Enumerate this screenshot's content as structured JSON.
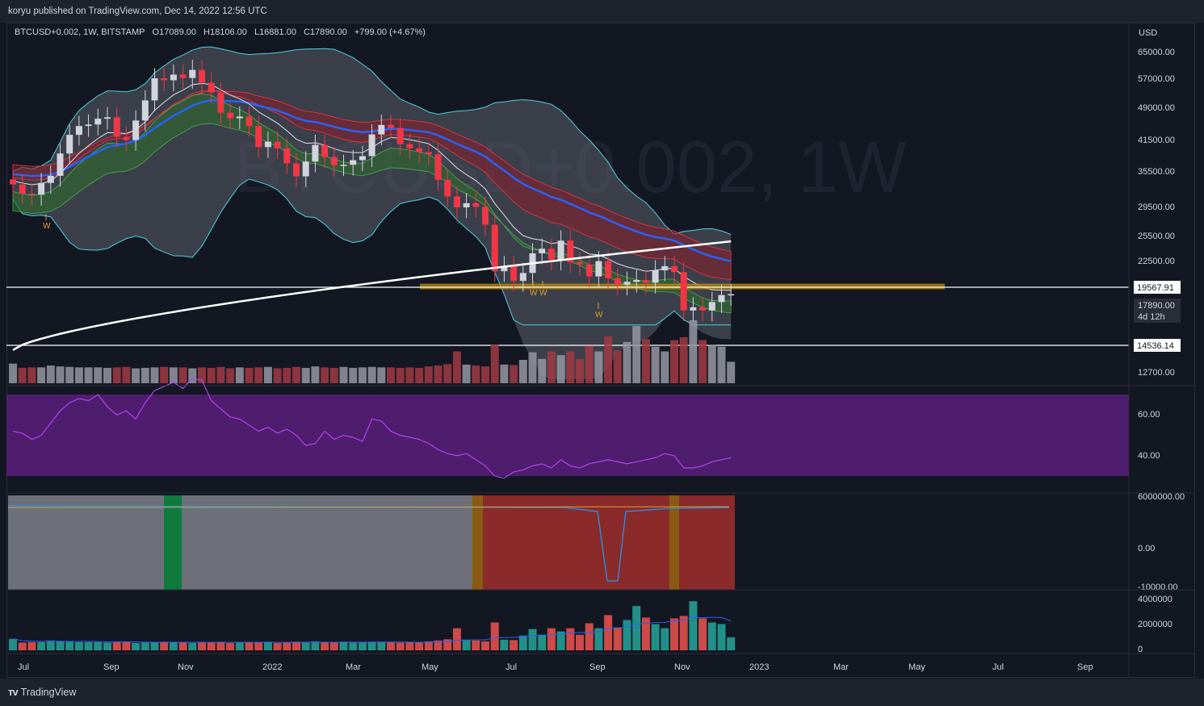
{
  "header": {
    "attribution": "koryu published on TradingView.com, Dec 14, 2022 12:56 UTC"
  },
  "legend": {
    "symbol": "BTCUSD+0.002, 1W, BITSTAMP",
    "open": "O17089.00",
    "high": "H18106.00",
    "low": "L16881.00",
    "close": "C17890.00",
    "change": "+799.00 (+4.67%)"
  },
  "watermark": "BTCUSD+0.002, 1W",
  "footer": {
    "brand": "TradingView"
  },
  "colors": {
    "up": "#d1d4dc",
    "down": "#f23645",
    "accent_orange": "#f7a21b",
    "ma200": "#ffffff",
    "rsi_band": "#5b1e7a",
    "rsi_line": "#b142f5"
  },
  "chart_data": [
    {
      "type": "candlestick",
      "title": "BTCUSD+0.002, 1W, BITSTAMP",
      "ylabel": "USD",
      "yscale": "log",
      "y_ticks": [
        "65000.00",
        "57000.00",
        "49000.00",
        "41500.00",
        "35500.00",
        "29500.00",
        "25500.00",
        "22500.00",
        "12700.00"
      ],
      "x_ticks": [
        "Jul",
        "Sep",
        "Nov",
        "2022",
        "Mar",
        "May",
        "Jul",
        "Sep",
        "Nov",
        "2023",
        "Mar",
        "May",
        "Jul",
        "Sep"
      ],
      "horizontal_levels": [
        {
          "value": 19567.91,
          "label": "19567.91"
        },
        {
          "value": 14536.14,
          "label": "14536.14"
        }
      ],
      "support_zone": {
        "low": 18400,
        "high": 19000
      },
      "last_price": {
        "label": "17890.00",
        "countdown": "4d 12h"
      },
      "series_close_weekly": [
        33500,
        31800,
        31600,
        33800,
        35200,
        40000,
        44500,
        46800,
        47200,
        48800,
        49200,
        44000,
        43200,
        48300,
        54200,
        61500,
        60800,
        62800,
        61600,
        64500,
        60000,
        56700,
        50500,
        48900,
        49400,
        46800,
        41500,
        42800,
        41200,
        37800,
        35100,
        38200,
        42000,
        39200,
        37400,
        37500,
        38500,
        39400,
        44600,
        47100,
        46300,
        42200,
        41200,
        40300,
        39800,
        34400,
        31300,
        29400,
        30100,
        29500,
        26600,
        20400,
        21000,
        19300,
        20200,
        22600,
        23200,
        21800,
        24300,
        21500,
        21200,
        19800,
        21600,
        19600,
        18900,
        19200,
        19400,
        19100,
        20500,
        21000,
        20300,
        16300,
        16600,
        16300,
        17100,
        17800,
        17890
      ],
      "ma200_endpoints": [
        {
          "x": "2021-06",
          "value": 13000
        },
        {
          "x": "2022-12",
          "value": 24200
        }
      ],
      "annotations": [
        "W",
        "W",
        "W",
        "W"
      ]
    },
    {
      "type": "line",
      "title": "RSI",
      "y_ticks": [
        "60.00",
        "40.00"
      ],
      "band": [
        30,
        70
      ],
      "values": [
        52,
        51,
        48,
        50,
        56,
        62,
        66,
        68,
        67,
        70,
        64,
        60,
        62,
        58,
        66,
        72,
        74,
        76,
        73,
        78,
        77,
        67,
        63,
        59,
        58,
        55,
        52,
        54,
        51,
        53,
        50,
        45,
        46,
        52,
        48,
        50,
        49,
        47,
        58,
        57,
        52,
        50,
        49,
        48,
        46,
        43,
        41,
        40,
        41,
        38,
        35,
        30,
        29,
        32,
        33,
        35,
        36,
        34,
        38,
        35,
        34,
        36,
        37,
        38,
        37,
        36,
        37,
        38,
        39,
        41,
        40,
        34,
        34,
        35,
        37,
        38,
        39
      ]
    },
    {
      "type": "line",
      "title": "Oscillator",
      "y_ticks": [
        "6000000.00",
        "0.00",
        "-10000.00"
      ],
      "regions": [
        {
          "color": "gray",
          "from": "2021-06",
          "to": "2022-05"
        },
        {
          "color": "green",
          "from": "2021-10",
          "to": "2021-10"
        },
        {
          "color": "orange",
          "from": "2022-06",
          "to": "2022-06"
        },
        {
          "color": "red",
          "from": "2022-06",
          "to": "2022-12"
        },
        {
          "color": "orange",
          "from": "2022-11",
          "to": "2022-11"
        }
      ]
    },
    {
      "type": "bar",
      "title": "Volume",
      "y_ticks": [
        "4000000",
        "2000000",
        "0"
      ],
      "values": [
        1400,
        950,
        1000,
        1000,
        1200,
        1100,
        1050,
        1000,
        1000,
        1000,
        950,
        1000,
        1050,
        900,
        950,
        1000,
        1050,
        1000,
        1000,
        900,
        1000,
        950,
        1050,
        900,
        1000,
        950,
        1000,
        1050,
        900,
        950,
        1050,
        950,
        1100,
        1000,
        950,
        1050,
        950,
        1000,
        1050,
        1000,
        1000,
        950,
        1000,
        950,
        1100,
        1200,
        1350,
        2700,
        1300,
        1200,
        1100,
        3400,
        1300,
        1250,
        1800,
        2600,
        1900,
        2700,
        2300,
        2700,
        1900,
        3300,
        2700,
        4300,
        2800,
        3700,
        5400,
        4000,
        3200,
        2700,
        3900,
        4200,
        6000,
        3900,
        3400,
        3200,
        1600
      ]
    }
  ]
}
